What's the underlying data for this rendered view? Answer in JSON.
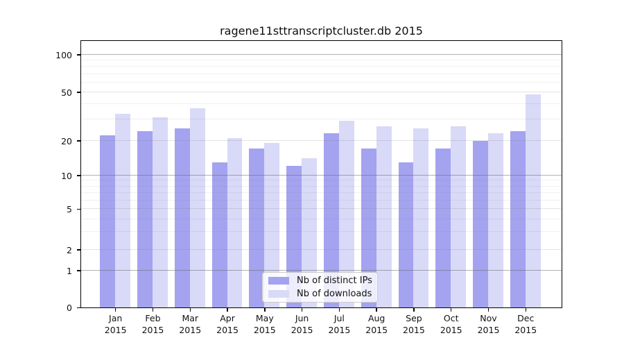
{
  "chart_data": {
    "type": "bar",
    "title": "ragene11sttranscriptcluster.db 2015",
    "months": [
      "Jan",
      "Feb",
      "Mar",
      "Apr",
      "May",
      "Jun",
      "Jul",
      "Aug",
      "Sep",
      "Oct",
      "Nov",
      "Dec"
    ],
    "x_tick_year": "2015",
    "series": [
      {
        "name": "Nb of distinct IPs",
        "color": "#a3a3f0",
        "values": [
          22,
          24,
          25,
          13,
          17,
          12,
          23,
          17,
          13,
          17,
          20,
          24
        ]
      },
      {
        "name": "Nb of downloads",
        "color": "#d9d9f8",
        "values": [
          33,
          31,
          37,
          21,
          19,
          14,
          29,
          26,
          25,
          26,
          23,
          48
        ]
      }
    ],
    "y_ticks": [
      0,
      1,
      2,
      5,
      10,
      20,
      50,
      100
    ],
    "y_minor_gridlines": [
      3,
      4,
      6,
      7,
      8,
      9,
      30,
      40,
      60,
      70,
      80,
      90
    ],
    "ylim": [
      0,
      130
    ],
    "yscale": "log-like",
    "grid": true,
    "legend_position": "lower center",
    "colors": {
      "grid_major": "#bfbfbf",
      "grid_semi": "#e3e3e3",
      "grid_minor": "#f0f0f0",
      "spine": "#000000",
      "legend_border": "#cccccc"
    }
  }
}
